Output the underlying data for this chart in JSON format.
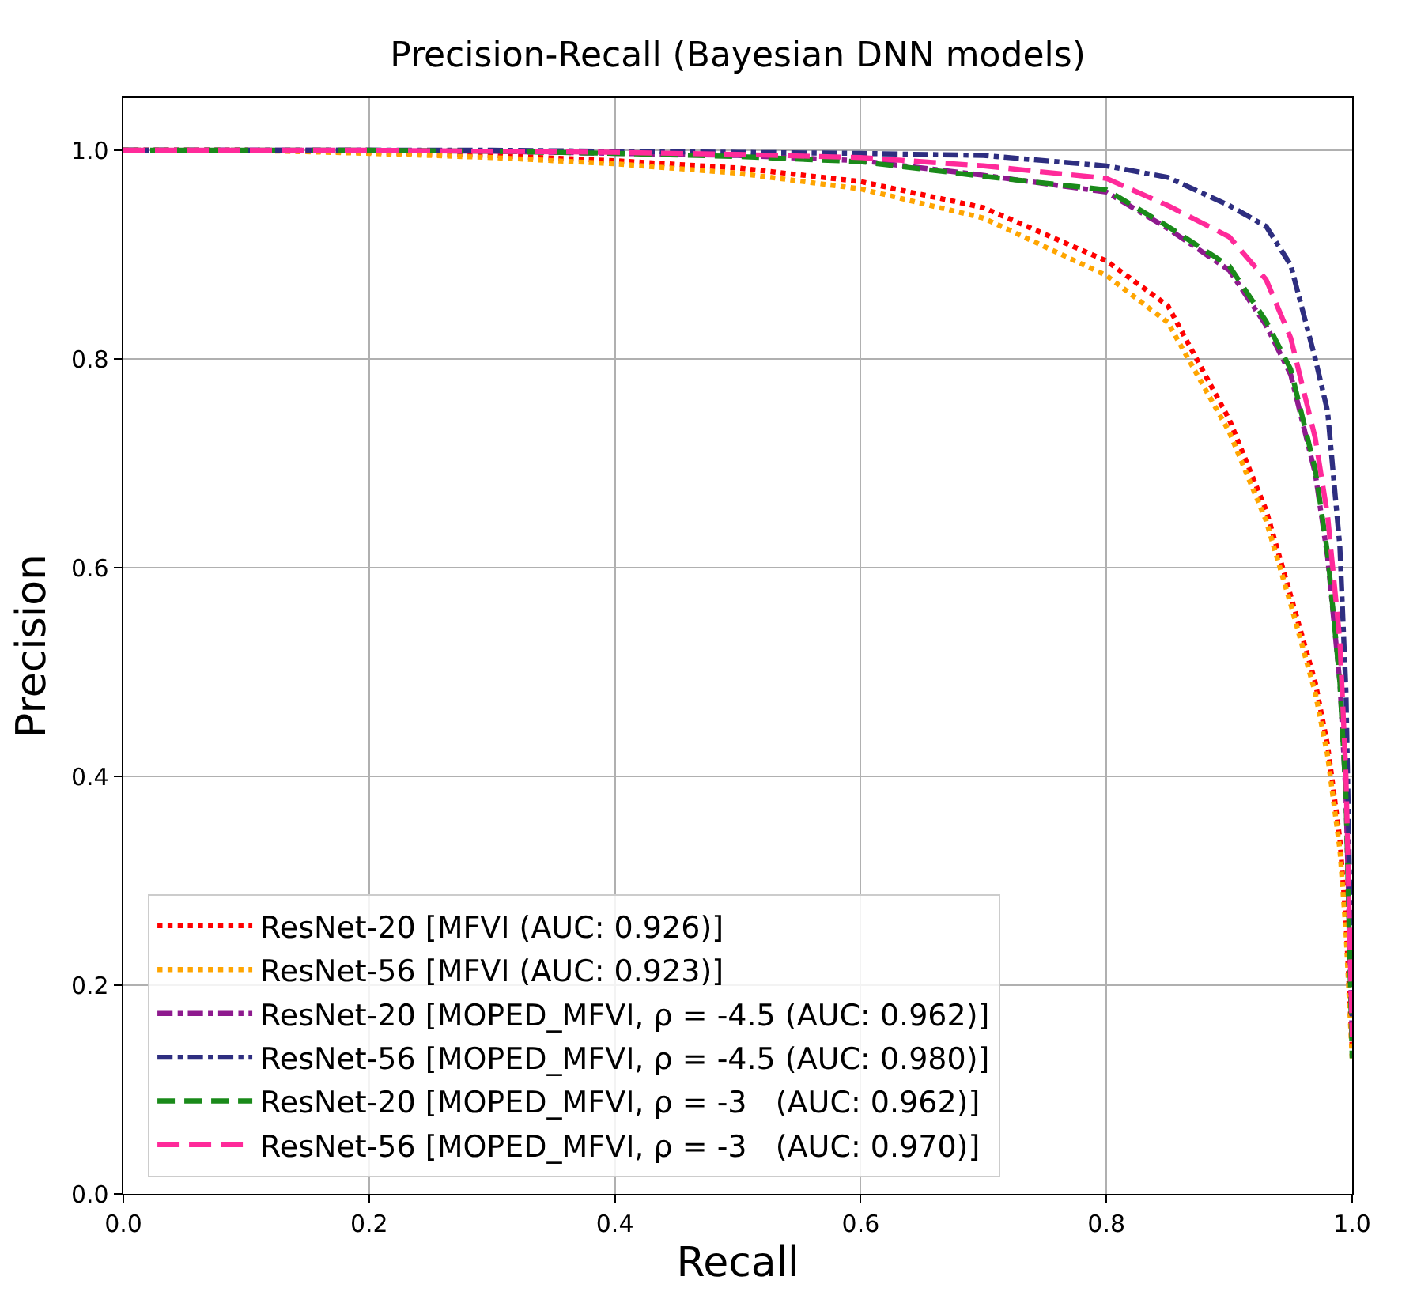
{
  "chart_data": {
    "type": "line",
    "title": "Precision-Recall (Bayesian DNN models)",
    "xlabel": "Recall",
    "ylabel": "Precision",
    "x": [
      0,
      0.1,
      0.2,
      0.3,
      0.4,
      0.5,
      0.6,
      0.7,
      0.8,
      0.85,
      0.9,
      0.93,
      0.95,
      0.97,
      0.98,
      0.99,
      0.995,
      1.0
    ],
    "series": [
      {
        "name": "ResNet-20 [MFVI (AUC: 0.926)]",
        "color": "#ff0000",
        "line_style": "dotted",
        "values": [
          1,
          1,
          0.998,
          0.995,
          0.99,
          0.983,
          0.97,
          0.945,
          0.894,
          0.851,
          0.742,
          0.655,
          0.573,
          0.49,
          0.43,
          0.34,
          0.26,
          0.14
        ]
      },
      {
        "name": "ResNet-56 [MFVI (AUC: 0.923)]",
        "color": "#ffa500",
        "line_style": "dotted",
        "values": [
          1,
          1,
          0.997,
          0.993,
          0.987,
          0.978,
          0.963,
          0.935,
          0.88,
          0.835,
          0.73,
          0.645,
          0.565,
          0.48,
          0.42,
          0.33,
          0.25,
          0.13
        ]
      },
      {
        "name": "ResNet-20 [MOPED_MFVI, ρ = -4.5 (AUC: 0.962)]",
        "color": "#8e1a8e",
        "line_style": "dashdot",
        "values": [
          1,
          1,
          1,
          0.999,
          0.997,
          0.995,
          0.99,
          0.976,
          0.96,
          0.925,
          0.885,
          0.832,
          0.785,
          0.69,
          0.61,
          0.49,
          0.38,
          0.15
        ]
      },
      {
        "name": "ResNet-56 [MOPED_MFVI, ρ = -4.5 (AUC: 0.980)]",
        "color": "#2e2e80",
        "line_style": "dashdot",
        "values": [
          1,
          1,
          1,
          1,
          0.999,
          0.998,
          0.997,
          0.995,
          0.985,
          0.974,
          0.947,
          0.927,
          0.89,
          0.8,
          0.75,
          0.62,
          0.48,
          0.17
        ]
      },
      {
        "name": "ResNet-20 [MOPED_MFVI, ρ = -3   (AUC: 0.962)]",
        "color": "#1a8a1a",
        "line_style": "dashed",
        "values": [
          1,
          1,
          1,
          0.999,
          0.997,
          0.994,
          0.989,
          0.975,
          0.962,
          0.927,
          0.889,
          0.836,
          0.79,
          0.694,
          0.614,
          0.49,
          0.38,
          0.13
        ]
      },
      {
        "name": "ResNet-56 [MOPED_MFVI, ρ = -3   (AUC: 0.970)]",
        "color": "#ff2a9a",
        "line_style": "dashed",
        "values": [
          1,
          1,
          1,
          0.999,
          0.998,
          0.996,
          0.993,
          0.985,
          0.973,
          0.947,
          0.917,
          0.876,
          0.82,
          0.724,
          0.65,
          0.53,
          0.4,
          0.15
        ]
      }
    ],
    "xlim": [
      0,
      1.0
    ],
    "xticks": [
      {
        "value": 0,
        "label": "0.0"
      },
      0.2,
      0.4,
      0.6,
      0.8,
      {
        "value": 1,
        "label": "1.0"
      }
    ],
    "ylim": [
      0,
      1.05
    ],
    "yticks": [
      {
        "value": 0,
        "label": "0.0"
      },
      0.2,
      0.4,
      0.6,
      0.8,
      {
        "value": 1,
        "label": "1.0"
      }
    ],
    "grid": true,
    "legend": "bottom left",
    "marker": "none"
  }
}
